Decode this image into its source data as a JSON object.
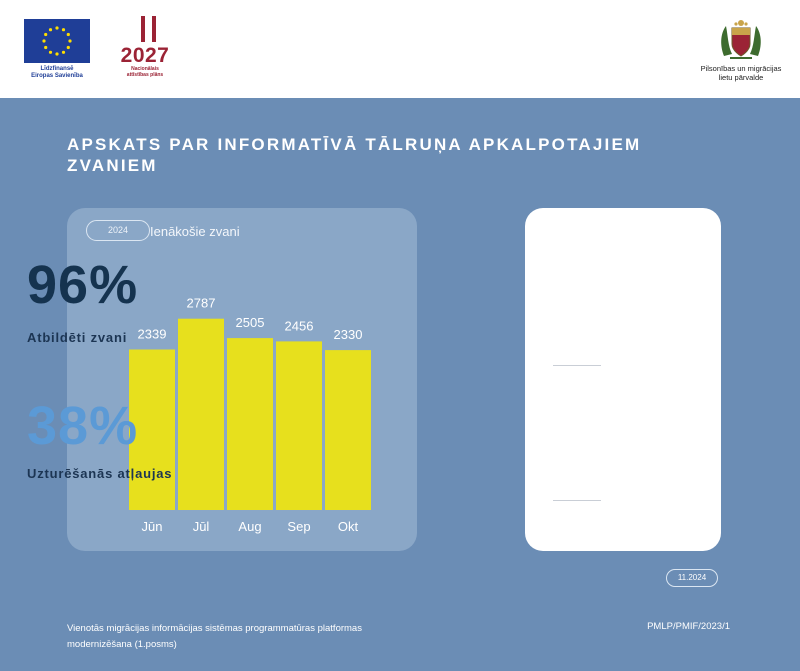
{
  "header": {
    "eu_caption_line1": "Līdzfinansē",
    "eu_caption_line2": "Eiropas Savienība",
    "eu_flag_color": "#1f3e97",
    "nap_year": "2027",
    "nap_caption_line1": "Nacionālais",
    "nap_caption_line2": "attīstības plāns",
    "nap_color": "#9b2335",
    "pmlp_caption_line1": "Pilsonības un migrācijas",
    "pmlp_caption_line2": "lietu pārvalde"
  },
  "title": "APSKATS PAR INFORMATĪVĀ TĀLRUŅA APKALPOTAJIEM ZVANIEM",
  "chart": {
    "year_pill": "2024",
    "label": "Ienākošie zvani"
  },
  "chart_data": {
    "type": "bar",
    "title": "Ienākošie zvani",
    "categories": [
      "Jūn",
      "Jūl",
      "Aug",
      "Sep",
      "Okt"
    ],
    "values": [
      2339,
      2787,
      2505,
      2456,
      2330
    ],
    "ylim": [
      0,
      4400
    ],
    "bar_color": "#e7e01d",
    "grid": false,
    "data_labels": true
  },
  "stats": {
    "answered_pct": "96%",
    "answered_label": "Atbildēti zvani",
    "residence_pct": "38%",
    "residence_label": "Uzturēšanās atļaujas",
    "answered_color": "#15334f",
    "residence_color": "#5b9ad6"
  },
  "date_pill": "11.2024",
  "footer": {
    "project_line1": "Vienotās migrācijas informācijas sistēmas programmatūras platformas",
    "project_line2": "modernizēšana (1.posms)",
    "project_code": "PMLP/PMIF/2023/1"
  }
}
